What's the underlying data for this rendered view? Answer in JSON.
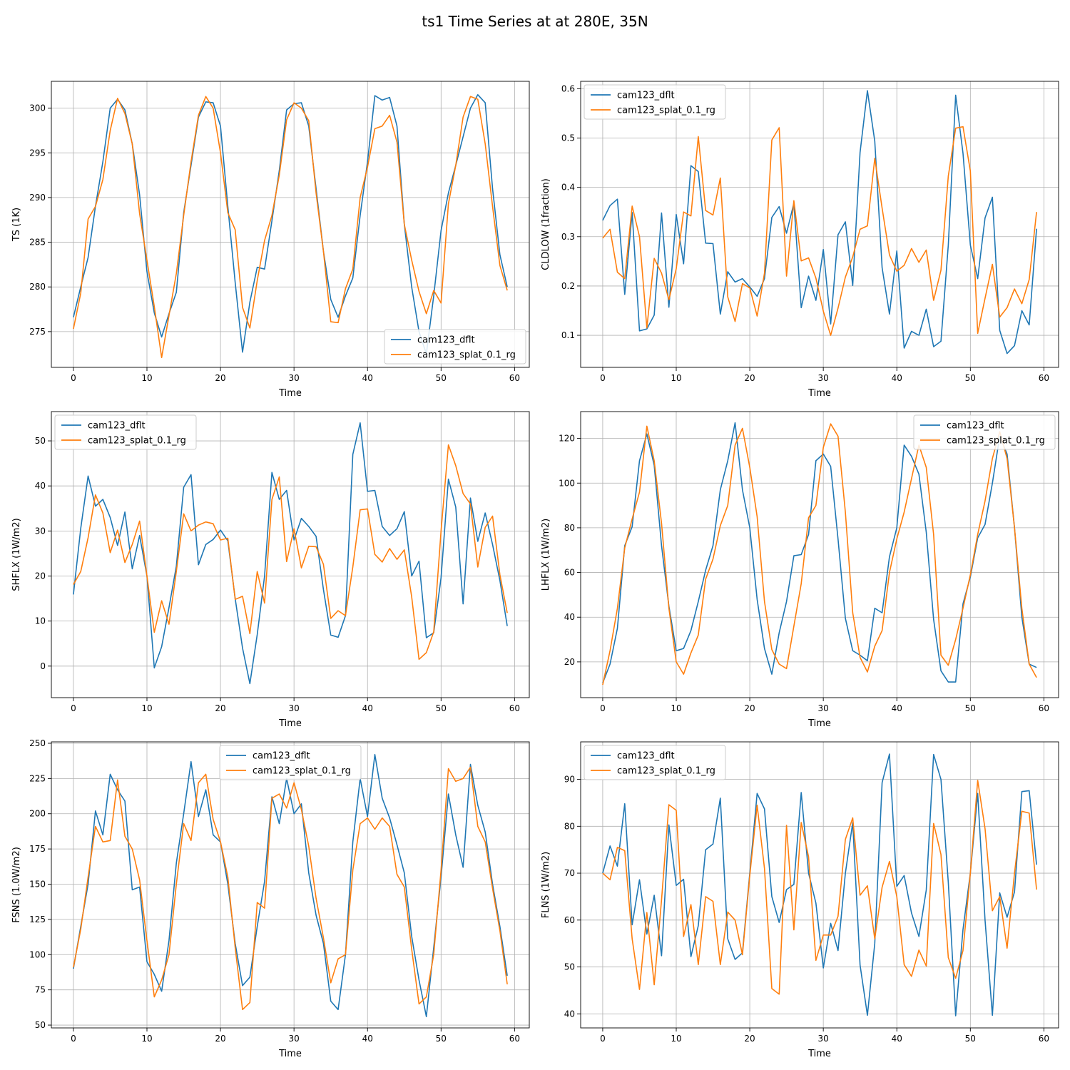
{
  "figure": {
    "title": "ts1 Time Series at at 280E, 35N"
  },
  "colors": {
    "dflt": "#1f77b4",
    "splat": "#ff7f0e",
    "grid": "#b0b0b0"
  },
  "chart_data": [
    {
      "type": "line",
      "xlabel": "Time",
      "ylabel": "TS (1K)",
      "xlim": [
        -3,
        62
      ],
      "ylim": [
        271,
        303
      ],
      "xticks": [
        0,
        10,
        20,
        30,
        40,
        50,
        60
      ],
      "yticks": [
        275,
        280,
        285,
        290,
        295,
        300
      ],
      "grid": true,
      "legend": "lower-right",
      "series": [
        {
          "name": "cam123_dflt",
          "values": [
            276.6,
            280.0,
            283.3,
            289.0,
            294.0,
            300.0,
            301.0,
            299.8,
            296.0,
            290.3,
            281.7,
            277.1,
            274.4,
            277.0,
            279.4,
            288.3,
            293.6,
            299.0,
            300.7,
            300.6,
            298.0,
            289.0,
            280.5,
            272.7,
            278.3,
            282.2,
            282.0,
            287.4,
            293.0,
            299.8,
            300.5,
            300.6,
            298.0,
            291.0,
            284.0,
            278.6,
            276.6,
            279.0,
            281.0,
            288.0,
            294.0,
            301.4,
            300.9,
            301.2,
            298.0,
            287.0,
            280.0,
            275.0,
            272.5,
            279.0,
            286.3,
            290.5,
            293.6,
            296.8,
            300.0,
            301.5,
            300.6,
            291.0,
            283.6,
            280.0
          ]
        },
        {
          "name": "cam123_splat_0.1_rg",
          "values": [
            275.3,
            279.3,
            287.6,
            289.0,
            292.0,
            297.5,
            301.1,
            299.4,
            296.0,
            288.2,
            283.0,
            277.8,
            272.1,
            276.8,
            281.5,
            288.0,
            294.0,
            299.2,
            301.3,
            300.0,
            295.0,
            288.3,
            286.4,
            277.7,
            275.4,
            280.7,
            285.2,
            288.0,
            292.5,
            298.7,
            300.6,
            300.0,
            298.6,
            290.5,
            284.0,
            276.1,
            276.0,
            279.8,
            282.0,
            290.0,
            293.4,
            297.7,
            298.0,
            299.2,
            296.2,
            287.0,
            283.0,
            279.5,
            277.0,
            279.6,
            278.2,
            289.3,
            293.6,
            299.0,
            301.3,
            301.0,
            296.0,
            289.0,
            282.4,
            279.6
          ]
        }
      ]
    },
    {
      "type": "line",
      "xlabel": "Time",
      "ylabel": "CLDLOW (1fraction)",
      "xlim": [
        -3,
        62
      ],
      "ylim": [
        0.035,
        0.615
      ],
      "xticks": [
        0,
        10,
        20,
        30,
        40,
        50,
        60
      ],
      "yticks": [
        0.1,
        0.2,
        0.3,
        0.4,
        0.5,
        0.6
      ],
      "grid": true,
      "legend": "upper-left",
      "series": [
        {
          "name": "cam123_dflt",
          "values": [
            0.333,
            0.363,
            0.376,
            0.183,
            0.349,
            0.109,
            0.113,
            0.141,
            0.348,
            0.157,
            0.345,
            0.245,
            0.444,
            0.432,
            0.287,
            0.286,
            0.143,
            0.229,
            0.208,
            0.215,
            0.198,
            0.179,
            0.215,
            0.339,
            0.361,
            0.307,
            0.368,
            0.156,
            0.22,
            0.171,
            0.274,
            0.123,
            0.304,
            0.33,
            0.201,
            0.471,
            0.596,
            0.494,
            0.237,
            0.143,
            0.271,
            0.074,
            0.108,
            0.1,
            0.153,
            0.077,
            0.088,
            0.283,
            0.587,
            0.469,
            0.283,
            0.215,
            0.338,
            0.38,
            0.11,
            0.063,
            0.079,
            0.15,
            0.121,
            0.316
          ]
        },
        {
          "name": "cam123_splat_0.1_rg",
          "values": [
            0.297,
            0.315,
            0.228,
            0.215,
            0.362,
            0.3,
            0.115,
            0.256,
            0.226,
            0.172,
            0.235,
            0.35,
            0.342,
            0.503,
            0.353,
            0.344,
            0.419,
            0.178,
            0.128,
            0.205,
            0.196,
            0.139,
            0.226,
            0.496,
            0.521,
            0.22,
            0.373,
            0.251,
            0.257,
            0.216,
            0.149,
            0.1,
            0.155,
            0.218,
            0.259,
            0.315,
            0.322,
            0.459,
            0.358,
            0.263,
            0.23,
            0.242,
            0.276,
            0.248,
            0.273,
            0.171,
            0.232,
            0.423,
            0.52,
            0.523,
            0.433,
            0.104,
            0.175,
            0.244,
            0.137,
            0.156,
            0.194,
            0.164,
            0.213,
            0.35
          ]
        }
      ]
    },
    {
      "type": "line",
      "xlabel": "Time",
      "ylabel": "SHFLX (1W/m2)",
      "xlim": [
        -3,
        62
      ],
      "ylim": [
        -7,
        56.5
      ],
      "xticks": [
        0,
        10,
        20,
        30,
        40,
        50,
        60
      ],
      "yticks": [
        0,
        10,
        20,
        30,
        40,
        50
      ],
      "grid": true,
      "legend": "upper-left",
      "series": [
        {
          "name": "cam123_dflt",
          "values": [
            15.9,
            30.6,
            42.2,
            35.5,
            37.0,
            33.0,
            26.8,
            34.2,
            21.6,
            29.0,
            20.0,
            -0.4,
            4.3,
            13.0,
            22.2,
            39.7,
            42.5,
            22.5,
            27.0,
            28.1,
            30.2,
            27.8,
            15.0,
            4.0,
            -3.9,
            7.0,
            20.0,
            43.0,
            37.0,
            39.0,
            28.0,
            32.8,
            31.0,
            28.8,
            17.0,
            6.9,
            6.4,
            11.2,
            47.0,
            54.0,
            38.8,
            39.0,
            31.0,
            29.0,
            30.5,
            34.3,
            20.0,
            23.3,
            6.3,
            7.4,
            19.6,
            41.5,
            35.3,
            13.8,
            37.3,
            27.7,
            34.0,
            27.0,
            19.0,
            8.9
          ]
        },
        {
          "name": "cam123_splat_0.1_rg",
          "values": [
            18.1,
            21.0,
            28.5,
            38.0,
            34.0,
            25.2,
            30.2,
            23.0,
            27.0,
            32.2,
            20.0,
            7.5,
            14.5,
            9.3,
            21.0,
            33.8,
            30.0,
            31.3,
            32.0,
            31.6,
            28.0,
            28.4,
            14.8,
            15.5,
            7.2,
            21.0,
            14.0,
            37.0,
            42.0,
            23.2,
            30.5,
            21.8,
            26.6,
            26.5,
            22.6,
            10.6,
            12.3,
            11.2,
            22.0,
            34.7,
            34.9,
            24.8,
            23.1,
            26.1,
            23.7,
            25.8,
            15.4,
            1.5,
            3.0,
            7.6,
            30.0,
            49.1,
            44.5,
            38.3,
            36.0,
            22.0,
            30.8,
            33.3,
            20.3,
            11.8
          ]
        }
      ]
    },
    {
      "type": "line",
      "xlabel": "Time",
      "ylabel": "LHFLX (1W/m2)",
      "xlim": [
        -3,
        62
      ],
      "ylim": [
        4,
        132
      ],
      "xticks": [
        0,
        10,
        20,
        30,
        40,
        50,
        60
      ],
      "yticks": [
        20,
        40,
        60,
        80,
        100,
        120
      ],
      "grid": true,
      "legend": "upper-right",
      "series": [
        {
          "name": "cam123_dflt",
          "values": [
            10.5,
            19.0,
            35.0,
            72.0,
            80.5,
            110.0,
            122.0,
            108.0,
            72.0,
            45.0,
            25.0,
            26.0,
            34.0,
            47.0,
            61.0,
            72.0,
            97.0,
            110.0,
            127.0,
            97.0,
            80.0,
            48.0,
            26.0,
            14.5,
            33.0,
            47.0,
            67.5,
            68.0,
            77.0,
            110.0,
            113.0,
            107.5,
            75.0,
            39.5,
            25.0,
            23.0,
            20.5,
            44.0,
            42.0,
            67.0,
            80.0,
            117.0,
            112.0,
            104.0,
            78.0,
            39.0,
            16.0,
            11.0,
            11.0,
            46.0,
            58.0,
            75.5,
            81.5,
            100.0,
            121.0,
            113.0,
            80.0,
            40.0,
            19.0,
            17.5
          ]
        },
        {
          "name": "cam123_splat_0.1_rg",
          "values": [
            9.7,
            25.0,
            44.0,
            71.0,
            84.0,
            96.0,
            125.5,
            110.0,
            82.0,
            44.0,
            20.0,
            14.5,
            24.0,
            32.0,
            57.0,
            66.0,
            81.0,
            90.0,
            117.0,
            124.5,
            107.0,
            85.0,
            47.0,
            25.5,
            19.0,
            17.0,
            36.0,
            55.0,
            84.5,
            90.0,
            116.0,
            126.5,
            121.0,
            87.0,
            42.0,
            22.0,
            15.5,
            27.0,
            34.0,
            60.0,
            75.0,
            87.0,
            102.0,
            117.0,
            107.0,
            77.0,
            23.0,
            18.5,
            30.0,
            44.0,
            59.0,
            77.0,
            92.0,
            111.0,
            123.0,
            111.0,
            80.0,
            44.0,
            19.0,
            13.0
          ]
        }
      ]
    },
    {
      "type": "line",
      "xlabel": "Time",
      "ylabel": "FSNS (1.0W/m2)",
      "xlim": [
        -3,
        62
      ],
      "ylim": [
        48,
        251
      ],
      "xticks": [
        0,
        10,
        20,
        30,
        40,
        50,
        60
      ],
      "yticks": [
        50,
        75,
        100,
        125,
        150,
        175,
        200,
        225,
        250
      ],
      "grid": true,
      "legend": "upper-center",
      "series": [
        {
          "name": "cam123_dflt",
          "values": [
            90.0,
            120.0,
            150.0,
            202.0,
            185.0,
            228.0,
            217.0,
            209.0,
            146.0,
            148.0,
            95.0,
            86.0,
            74.0,
            110.0,
            165.0,
            200.0,
            237.0,
            198.0,
            217.0,
            185.0,
            180.0,
            150.0,
            108.0,
            78.0,
            84.0,
            120.0,
            152.0,
            212.0,
            193.0,
            225.0,
            200.0,
            207.0,
            158.0,
            128.0,
            108.0,
            67.0,
            61.0,
            100.0,
            180.0,
            225.0,
            198.0,
            242.0,
            211.0,
            197.0,
            178.0,
            158.0,
            113.0,
            82.0,
            56.0,
            105.0,
            155.0,
            214.0,
            185.0,
            162.0,
            235.0,
            206.0,
            187.0,
            150.0,
            120.0,
            85.0
          ]
        },
        {
          "name": "cam123_splat_0.1_rg",
          "values": [
            91.0,
            118.0,
            155.0,
            191.0,
            180.0,
            181.0,
            224.0,
            184.0,
            175.0,
            153.0,
            110.0,
            70.0,
            82.0,
            100.0,
            150.0,
            193.0,
            181.0,
            222.0,
            228.0,
            196.0,
            180.0,
            155.0,
            105.0,
            61.0,
            66.0,
            137.0,
            133.0,
            211.0,
            214.0,
            204.0,
            222.0,
            203.0,
            177.0,
            140.0,
            112.0,
            80.0,
            97.0,
            100.0,
            160.0,
            193.0,
            197.0,
            189.0,
            197.0,
            191.0,
            157.0,
            148.0,
            104.0,
            65.0,
            70.0,
            100.0,
            160.0,
            232.0,
            223.0,
            225.0,
            233.0,
            191.0,
            180.0,
            147.0,
            117.0,
            79.0
          ]
        }
      ]
    },
    {
      "type": "line",
      "xlabel": "Time",
      "ylabel": "FLNS (1W/m2)",
      "xlim": [
        -3,
        62
      ],
      "ylim": [
        37,
        98
      ],
      "xticks": [
        0,
        10,
        20,
        30,
        40,
        50,
        60
      ],
      "yticks": [
        40,
        50,
        60,
        70,
        80,
        90
      ],
      "grid": true,
      "legend": "upper-left",
      "series": [
        {
          "name": "cam123_dflt",
          "values": [
            70.0,
            75.8,
            71.5,
            84.8,
            59.0,
            68.6,
            57.0,
            65.3,
            52.4,
            80.3,
            67.4,
            68.7,
            52.2,
            58.8,
            75.0,
            76.2,
            86.0,
            56.0,
            51.6,
            53.0,
            70.0,
            87.0,
            83.7,
            65.0,
            59.5,
            66.5,
            67.6,
            87.2,
            70.0,
            63.6,
            49.8,
            59.3,
            53.5,
            70.0,
            80.8,
            50.4,
            39.7,
            55.0,
            89.3,
            95.4,
            67.2,
            69.5,
            61.5,
            56.5,
            66.4,
            95.3,
            90.0,
            68.0,
            39.6,
            58.0,
            70.0,
            87.0,
            60.0,
            39.7,
            65.8,
            60.6,
            66.0,
            87.4,
            87.6,
            71.8
          ]
        },
        {
          "name": "cam123_splat_0.1_rg",
          "values": [
            70.0,
            68.6,
            75.5,
            74.8,
            56.0,
            45.2,
            61.6,
            46.2,
            64.3,
            84.6,
            83.4,
            56.5,
            63.3,
            50.5,
            65.0,
            64.0,
            50.5,
            61.7,
            60.0,
            52.6,
            69.5,
            84.5,
            71.0,
            45.4,
            44.2,
            80.2,
            57.9,
            80.8,
            73.5,
            51.4,
            56.8,
            56.8,
            60.8,
            77.2,
            81.8,
            65.3,
            67.3,
            56.0,
            67.0,
            72.5,
            65.0,
            50.5,
            48.0,
            53.6,
            50.2,
            80.6,
            74.0,
            52.0,
            47.6,
            53.5,
            70.0,
            89.8,
            79.5,
            62.0,
            65.0,
            54.0,
            70.0,
            83.2,
            82.8,
            66.5
          ]
        }
      ]
    }
  ]
}
